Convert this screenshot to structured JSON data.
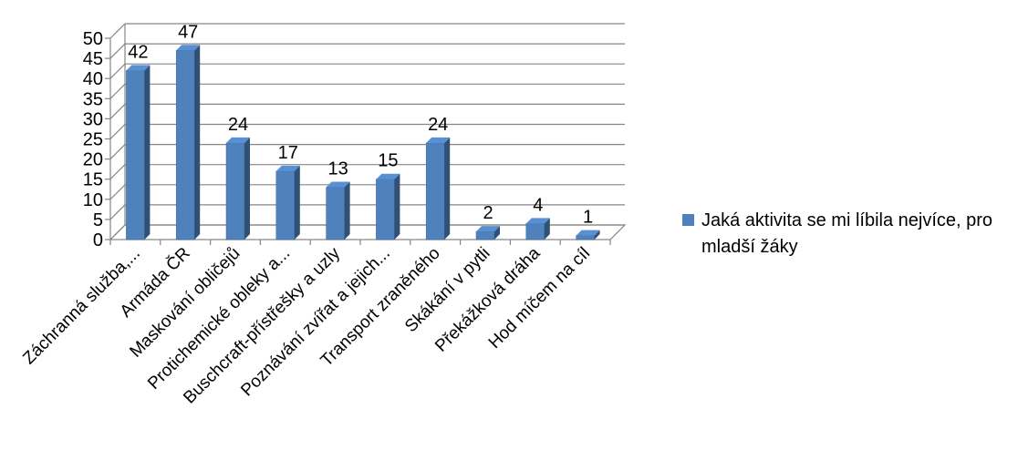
{
  "chart_data": {
    "type": "bar",
    "title": "",
    "xlabel": "",
    "ylabel": "",
    "ylim": [
      0,
      50
    ],
    "y_ticks": [
      "0",
      "5",
      "10",
      "15",
      "20",
      "25",
      "30",
      "35",
      "40",
      "45",
      "50"
    ],
    "categories": [
      "Záchranná služba,...",
      "Armáda ČR",
      "Maskování obličejů",
      "Protichemické obleky a...",
      "Buschcraft-přístřešky a uzly",
      "Poznávání zvířat a jejich...",
      "Transport zraněného",
      "Skákání v pytli",
      "Překážková dráha",
      "Hod míčem na cíl"
    ],
    "series": [
      {
        "name": "Jaká aktivita se mi líbila nejvíce, pro mladší žáky",
        "values": [
          42,
          47,
          24,
          17,
          13,
          15,
          24,
          2,
          4,
          1
        ],
        "data_labels": [
          "42",
          "47",
          "24",
          "17",
          "13",
          "15",
          "24",
          "2",
          "4",
          "1"
        ],
        "color": "#4F81BD"
      }
    ],
    "grid": true,
    "style": "3d-column",
    "legend_position": "right"
  },
  "legend": {
    "text": "Jaká aktivita se mi líbila nejvíce, pro mladší žáky",
    "color": "#4F81BD"
  }
}
